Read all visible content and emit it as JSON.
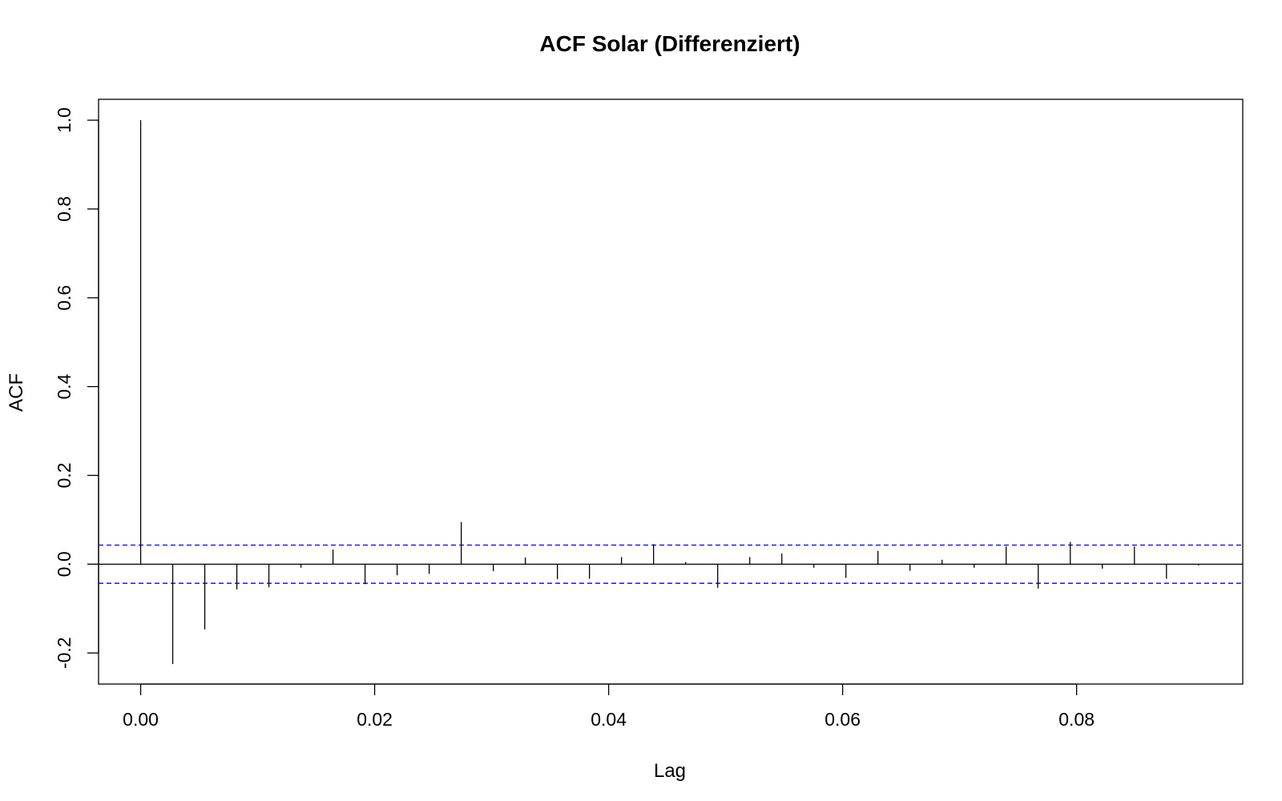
{
  "chart_data": {
    "type": "bar",
    "title": "ACF Solar (Differenziert)",
    "xlabel": "Lag",
    "ylabel": "ACF",
    "xlim": [
      -0.0036,
      0.0942
    ],
    "ylim": [
      -0.27,
      1.047
    ],
    "x_ticks": [
      "0.00",
      "0.02",
      "0.04",
      "0.06",
      "0.08"
    ],
    "x_tick_values": [
      0,
      0.02,
      0.04,
      0.06,
      0.08
    ],
    "y_ticks": [
      "-0.2",
      "0.0",
      "0.2",
      "0.4",
      "0.6",
      "0.8",
      "1.0"
    ],
    "y_tick_values": [
      -0.2,
      0,
      0.2,
      0.4,
      0.6,
      0.8,
      1.0
    ],
    "confidence_band": {
      "upper": 0.043,
      "lower": -0.043,
      "color": "#0000ff"
    },
    "lag_step": 0.00274,
    "acf_values": [
      1.0,
      -0.225,
      -0.147,
      -0.057,
      -0.052,
      -0.008,
      0.033,
      -0.045,
      -0.025,
      -0.022,
      0.095,
      -0.016,
      0.015,
      -0.034,
      -0.033,
      0.016,
      0.045,
      0.005,
      -0.053,
      0.016,
      0.024,
      -0.008,
      -0.031,
      0.03,
      -0.015,
      0.01,
      -0.008,
      0.04,
      -0.055,
      0.05,
      -0.01,
      0.04,
      -0.033,
      -0.003
    ],
    "grid": false,
    "legend": "none",
    "bar_color": "#000000"
  }
}
